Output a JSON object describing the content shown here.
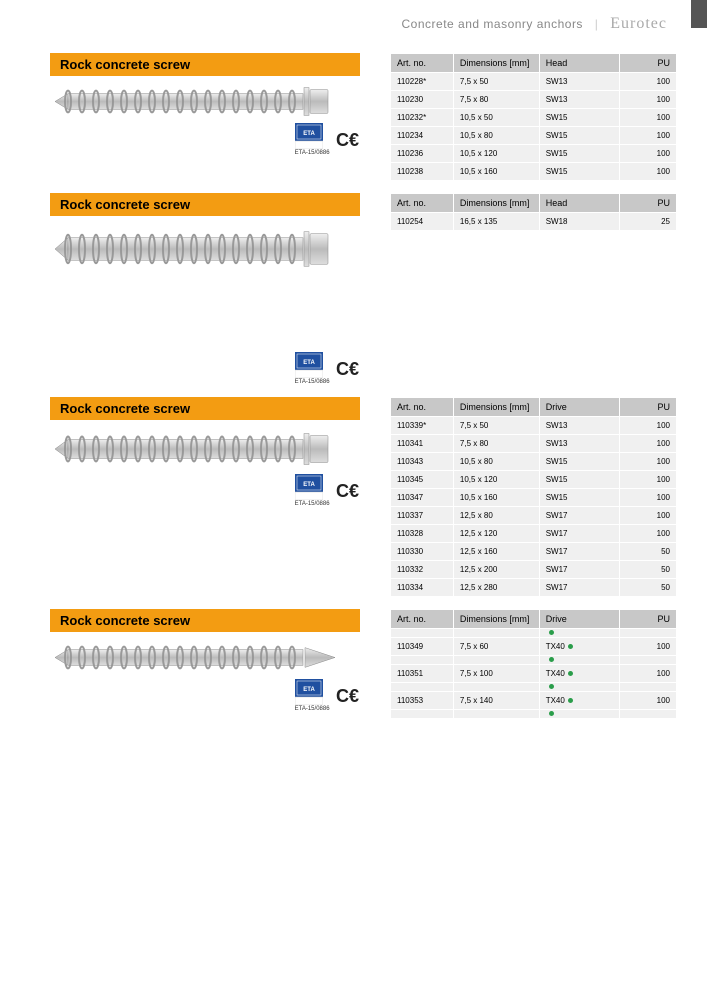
{
  "header": {
    "category": "Concrete and masonry anchors",
    "brand": "Eurotec"
  },
  "eta": {
    "code": "ETA-15/0886"
  },
  "sections": [
    {
      "title": "Rock concrete screw",
      "screw_svg_h": 35,
      "columns": [
        "Art. no.",
        "Dimensions [mm]",
        "Head",
        "PU"
      ],
      "rows": [
        [
          "110228*",
          "7,5 x 50",
          "SW13",
          "100"
        ],
        [
          "110230",
          "7,5 x 80",
          "SW13",
          "100"
        ],
        [
          "110232*",
          "10,5 x 50",
          "SW15",
          "100"
        ],
        [
          "110234",
          "10,5 x 80",
          "SW15",
          "100"
        ],
        [
          "110236",
          "10,5 x 120",
          "SW15",
          "100"
        ],
        [
          "110238",
          "10,5 x 160",
          "SW15",
          "100"
        ]
      ],
      "eta": true
    },
    {
      "title": "Rock concrete screw",
      "screw_svg_h": 50,
      "columns": [
        "Art. no.",
        "Dimensions [mm]",
        "Head",
        "PU"
      ],
      "rows": [
        [
          "110254",
          "16,5 x 135",
          "SW18",
          "25"
        ]
      ],
      "eta": true,
      "extra_space": true
    },
    {
      "title": "Rock concrete screw",
      "screw_svg_h": 42,
      "columns": [
        "Art. no.",
        "Dimensions [mm]",
        "Drive",
        "PU"
      ],
      "rows": [
        [
          "110339*",
          "7,5 x 50",
          "SW13",
          "100"
        ],
        [
          "110341",
          "7,5 x 80",
          "SW13",
          "100"
        ],
        [
          "110343",
          "10,5 x 80",
          "SW15",
          "100"
        ],
        [
          "110345",
          "10,5 x 120",
          "SW15",
          "100"
        ],
        [
          "110347",
          "10,5 x 160",
          "SW15",
          "100"
        ],
        [
          "110337",
          "12,5 x 80",
          "SW17",
          "100"
        ],
        [
          "110328",
          "12,5 x 120",
          "SW17",
          "100"
        ],
        [
          "110330",
          "12,5 x 160",
          "SW17",
          "50"
        ],
        [
          "110332",
          "12,5 x 200",
          "SW17",
          "50"
        ],
        [
          "110334",
          "12,5 x 280",
          "SW17",
          "50"
        ]
      ],
      "eta": true
    },
    {
      "title": "Rock concrete screw",
      "screw_svg_h": 35,
      "columns": [
        "Art. no.",
        "Dimensions [mm]",
        "Drive",
        "PU"
      ],
      "dots": true,
      "rows": [
        [
          "110349",
          "7,5 x 60",
          "TX40",
          "100"
        ],
        [
          "110351",
          "7,5 x 100",
          "TX40",
          "100"
        ],
        [
          "110353",
          "7,5 x 140",
          "TX40",
          "100"
        ]
      ],
      "eta": true,
      "countersunk": true
    }
  ],
  "col_widths": [
    "22%",
    "30%",
    "28%",
    "20%"
  ]
}
